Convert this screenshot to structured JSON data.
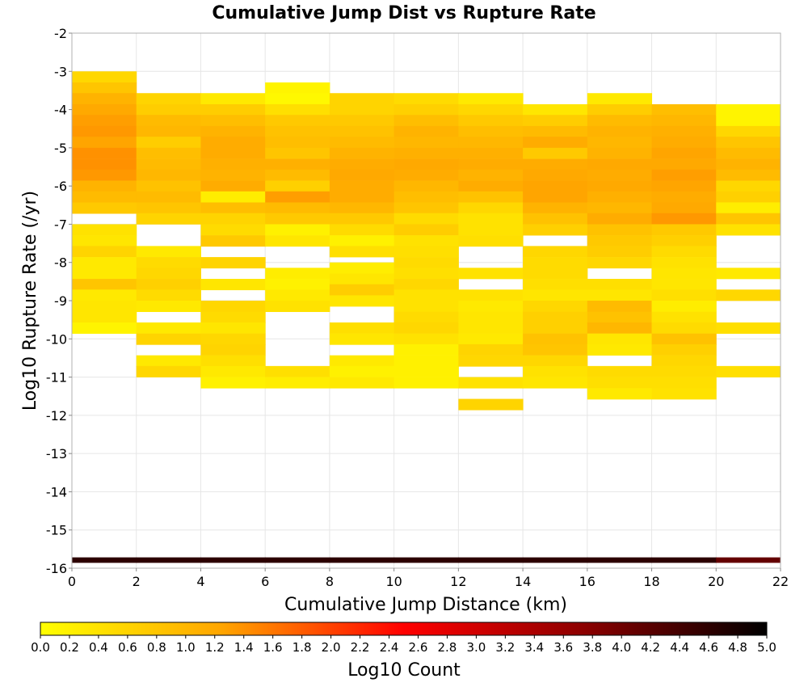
{
  "chart_data": {
    "type": "heatmap",
    "title": "Cumulative Jump Dist vs Rupture Rate",
    "xlabel": "Cumulative Jump Distance (km)",
    "ylabel": "Log10 Rupture Rate (/yr)",
    "colorbar_label": "Log10 Count",
    "xlim": [
      0,
      22
    ],
    "ylim": [
      -16,
      -2
    ],
    "x_ticks": [
      0,
      2,
      4,
      6,
      8,
      10,
      12,
      14,
      16,
      18,
      20,
      22
    ],
    "y_ticks": [
      -2,
      -3,
      -4,
      -5,
      -6,
      -7,
      -8,
      -9,
      -10,
      -11,
      -12,
      -13,
      -14,
      -15,
      -16
    ],
    "colorbar_ticks": [
      "0.0",
      "0.2",
      "0.4",
      "0.6",
      "0.8",
      "1.0",
      "1.2",
      "1.4",
      "1.6",
      "1.8",
      "2.0",
      "2.2",
      "2.4",
      "2.6",
      "2.8",
      "3.0",
      "3.2",
      "3.4",
      "3.6",
      "3.8",
      "4.0",
      "4.2",
      "4.4",
      "4.6",
      "4.8",
      "5.0"
    ],
    "colorbar_range": [
      0,
      5
    ],
    "colormap": [
      "#ffff00",
      "#ffa500",
      "#ff0000",
      "#8b0000",
      "#000000"
    ],
    "x_bin_width": 2,
    "y_bin_height": 0.2857,
    "grid": true,
    "columns": [
      {
        "x": 1,
        "cells": [
          [
            -3.0,
            0.55
          ],
          [
            -3.29,
            0.8
          ],
          [
            -3.57,
            1.05
          ],
          [
            -3.86,
            1.2
          ],
          [
            -4.14,
            1.3
          ],
          [
            -4.43,
            1.35
          ],
          [
            -4.71,
            1.25
          ],
          [
            -5.0,
            1.4
          ],
          [
            -5.29,
            1.4
          ],
          [
            -5.57,
            1.35
          ],
          [
            -5.86,
            1.05
          ],
          [
            -6.14,
            0.95
          ],
          [
            -6.43,
            0.75
          ],
          [
            -7.0,
            0.4
          ],
          [
            -7.29,
            0.35
          ],
          [
            -7.57,
            0.6
          ],
          [
            -7.86,
            0.3
          ],
          [
            -8.14,
            0.3
          ],
          [
            -8.43,
            0.8
          ],
          [
            -8.71,
            0.3
          ],
          [
            -9.0,
            0.35
          ],
          [
            -9.29,
            0.35
          ],
          [
            -9.57,
            0.15
          ]
        ]
      },
      {
        "x": 3,
        "cells": [
          [
            -3.57,
            0.6
          ],
          [
            -3.86,
            0.7
          ],
          [
            -4.14,
            0.95
          ],
          [
            -4.43,
            1.0
          ],
          [
            -4.71,
            0.7
          ],
          [
            -5.0,
            0.9
          ],
          [
            -5.29,
            0.95
          ],
          [
            -5.57,
            1.0
          ],
          [
            -5.86,
            0.85
          ],
          [
            -6.14,
            0.95
          ],
          [
            -6.43,
            0.8
          ],
          [
            -6.71,
            0.6
          ],
          [
            -7.57,
            0.3
          ],
          [
            -7.86,
            0.5
          ],
          [
            -8.14,
            0.55
          ],
          [
            -8.43,
            0.65
          ],
          [
            -8.71,
            0.5
          ],
          [
            -9.0,
            0.3
          ],
          [
            -9.57,
            0.3
          ],
          [
            -9.86,
            0.6
          ],
          [
            -10.43,
            0.3
          ],
          [
            -10.71,
            0.55
          ]
        ]
      },
      {
        "x": 5,
        "cells": [
          [
            -3.57,
            0.3
          ],
          [
            -3.86,
            0.7
          ],
          [
            -4.14,
            0.9
          ],
          [
            -4.43,
            1.05
          ],
          [
            -4.71,
            1.15
          ],
          [
            -5.0,
            1.15
          ],
          [
            -5.29,
            1.1
          ],
          [
            -5.57,
            1.05
          ],
          [
            -5.86,
            1.15
          ],
          [
            -6.14,
            0.25
          ],
          [
            -6.43,
            0.9
          ],
          [
            -6.71,
            0.6
          ],
          [
            -7.0,
            0.5
          ],
          [
            -7.29,
            0.75
          ],
          [
            -7.86,
            0.6
          ],
          [
            -8.43,
            0.35
          ],
          [
            -9.0,
            0.55
          ],
          [
            -9.29,
            0.5
          ],
          [
            -9.57,
            0.35
          ],
          [
            -9.86,
            0.55
          ],
          [
            -10.14,
            0.6
          ],
          [
            -10.43,
            0.45
          ],
          [
            -10.71,
            0.3
          ],
          [
            -11.0,
            0.2
          ]
        ]
      },
      {
        "x": 7,
        "cells": [
          [
            -3.29,
            0.15
          ],
          [
            -3.57,
            0.1
          ],
          [
            -3.86,
            0.45
          ],
          [
            -4.14,
            0.75
          ],
          [
            -4.43,
            0.85
          ],
          [
            -4.71,
            0.9
          ],
          [
            -5.0,
            0.8
          ],
          [
            -5.29,
            1.1
          ],
          [
            -5.57,
            0.95
          ],
          [
            -5.86,
            0.65
          ],
          [
            -6.14,
            1.3
          ],
          [
            -6.43,
            0.95
          ],
          [
            -6.71,
            0.75
          ],
          [
            -7.0,
            0.2
          ],
          [
            -7.29,
            0.35
          ],
          [
            -8.14,
            0.25
          ],
          [
            -8.43,
            0.2
          ],
          [
            -8.71,
            0.3
          ],
          [
            -9.0,
            0.4
          ],
          [
            -10.71,
            0.45
          ],
          [
            -11.0,
            0.25
          ]
        ]
      },
      {
        "x": 9,
        "cells": [
          [
            -3.57,
            0.6
          ],
          [
            -3.86,
            0.6
          ],
          [
            -4.14,
            0.75
          ],
          [
            -4.43,
            0.85
          ],
          [
            -4.71,
            0.95
          ],
          [
            -5.0,
            1.05
          ],
          [
            -5.29,
            1.15
          ],
          [
            -5.57,
            1.2
          ],
          [
            -5.86,
            1.15
          ],
          [
            -6.14,
            1.15
          ],
          [
            -6.43,
            1.0
          ],
          [
            -6.71,
            0.75
          ],
          [
            -7.0,
            0.5
          ],
          [
            -7.29,
            0.2
          ],
          [
            -7.57,
            0.45
          ],
          [
            -8.0,
            0.25
          ],
          [
            -8.29,
            0.35
          ],
          [
            -8.57,
            0.7
          ],
          [
            -8.86,
            0.35
          ],
          [
            -9.57,
            0.45
          ],
          [
            -9.86,
            0.35
          ],
          [
            -10.43,
            0.3
          ],
          [
            -10.71,
            0.2
          ],
          [
            -11.0,
            0.3
          ]
        ]
      },
      {
        "x": 11,
        "cells": [
          [
            -3.57,
            0.5
          ],
          [
            -3.86,
            0.65
          ],
          [
            -4.14,
            0.9
          ],
          [
            -4.43,
            1.05
          ],
          [
            -4.71,
            1.0
          ],
          [
            -5.0,
            1.1
          ],
          [
            -5.29,
            1.2
          ],
          [
            -5.57,
            1.15
          ],
          [
            -5.86,
            1.0
          ],
          [
            -6.14,
            0.9
          ],
          [
            -6.43,
            0.8
          ],
          [
            -6.71,
            0.5
          ],
          [
            -7.0,
            0.7
          ],
          [
            -7.29,
            0.4
          ],
          [
            -7.57,
            0.45
          ],
          [
            -7.86,
            0.5
          ],
          [
            -8.14,
            0.45
          ],
          [
            -8.43,
            0.55
          ],
          [
            -8.71,
            0.4
          ],
          [
            -9.0,
            0.4
          ],
          [
            -9.29,
            0.5
          ],
          [
            -9.57,
            0.55
          ],
          [
            -9.86,
            0.4
          ],
          [
            -10.14,
            0.2
          ],
          [
            -10.43,
            0.2
          ],
          [
            -10.71,
            0.2
          ],
          [
            -11.0,
            0.2
          ]
        ]
      },
      {
        "x": 13,
        "cells": [
          [
            -3.57,
            0.3
          ],
          [
            -3.86,
            0.55
          ],
          [
            -4.14,
            0.75
          ],
          [
            -4.43,
            0.9
          ],
          [
            -4.71,
            1.0
          ],
          [
            -5.0,
            1.1
          ],
          [
            -5.29,
            1.15
          ],
          [
            -5.57,
            1.05
          ],
          [
            -5.86,
            1.15
          ],
          [
            -6.14,
            0.85
          ],
          [
            -6.43,
            0.55
          ],
          [
            -6.71,
            0.4
          ],
          [
            -7.0,
            0.4
          ],
          [
            -7.29,
            0.45
          ],
          [
            -8.14,
            0.4
          ],
          [
            -8.71,
            0.4
          ],
          [
            -9.0,
            0.3
          ],
          [
            -9.29,
            0.35
          ],
          [
            -9.57,
            0.35
          ],
          [
            -9.86,
            0.3
          ],
          [
            -10.14,
            0.6
          ],
          [
            -10.43,
            0.55
          ],
          [
            -11.0,
            0.4
          ],
          [
            -11.57,
            0.6
          ]
        ]
      },
      {
        "x": 15,
        "cells": [
          [
            -3.86,
            0.35
          ],
          [
            -4.14,
            0.7
          ],
          [
            -4.43,
            0.95
          ],
          [
            -4.71,
            1.15
          ],
          [
            -5.0,
            0.75
          ],
          [
            -5.29,
            1.15
          ],
          [
            -5.57,
            1.2
          ],
          [
            -5.86,
            1.25
          ],
          [
            -6.14,
            1.25
          ],
          [
            -6.43,
            1.05
          ],
          [
            -6.71,
            0.85
          ],
          [
            -7.0,
            0.65
          ],
          [
            -7.57,
            0.55
          ],
          [
            -7.86,
            0.5
          ],
          [
            -8.14,
            0.5
          ],
          [
            -8.43,
            0.45
          ],
          [
            -8.71,
            0.35
          ],
          [
            -9.0,
            0.55
          ],
          [
            -9.29,
            0.65
          ],
          [
            -9.57,
            0.65
          ],
          [
            -9.86,
            0.85
          ],
          [
            -10.14,
            0.8
          ],
          [
            -10.43,
            0.55
          ],
          [
            -10.71,
            0.4
          ],
          [
            -11.0,
            0.35
          ]
        ]
      },
      {
        "x": 17,
        "cells": [
          [
            -3.57,
            0.3
          ],
          [
            -3.86,
            0.7
          ],
          [
            -4.14,
            0.95
          ],
          [
            -4.43,
            1.05
          ],
          [
            -4.71,
            1.0
          ],
          [
            -5.0,
            1.05
          ],
          [
            -5.29,
            1.2
          ],
          [
            -5.57,
            1.15
          ],
          [
            -5.86,
            1.2
          ],
          [
            -6.14,
            1.1
          ],
          [
            -6.43,
            1.0
          ],
          [
            -6.71,
            1.15
          ],
          [
            -7.0,
            0.85
          ],
          [
            -7.29,
            0.75
          ],
          [
            -7.57,
            0.7
          ],
          [
            -7.86,
            0.55
          ],
          [
            -8.43,
            0.45
          ],
          [
            -8.71,
            0.35
          ],
          [
            -9.0,
            0.95
          ],
          [
            -9.29,
            0.85
          ],
          [
            -9.57,
            1.0
          ],
          [
            -9.86,
            0.35
          ],
          [
            -10.14,
            0.3
          ],
          [
            -10.71,
            0.5
          ],
          [
            -11.0,
            0.45
          ],
          [
            -11.29,
            0.3
          ]
        ]
      },
      {
        "x": 19,
        "cells": [
          [
            -3.86,
            0.9
          ],
          [
            -4.14,
            1.0
          ],
          [
            -4.43,
            1.1
          ],
          [
            -4.71,
            1.15
          ],
          [
            -5.0,
            1.25
          ],
          [
            -5.29,
            1.2
          ],
          [
            -5.57,
            1.3
          ],
          [
            -5.86,
            1.25
          ],
          [
            -6.14,
            1.15
          ],
          [
            -6.43,
            1.2
          ],
          [
            -6.71,
            1.35
          ],
          [
            -7.0,
            0.75
          ],
          [
            -7.29,
            0.65
          ],
          [
            -7.57,
            0.5
          ],
          [
            -7.86,
            0.4
          ],
          [
            -8.14,
            0.35
          ],
          [
            -8.43,
            0.35
          ],
          [
            -8.71,
            0.45
          ],
          [
            -9.0,
            0.25
          ],
          [
            -9.29,
            0.4
          ],
          [
            -9.57,
            0.5
          ],
          [
            -9.86,
            0.85
          ],
          [
            -10.14,
            0.65
          ],
          [
            -10.43,
            0.55
          ],
          [
            -10.71,
            0.5
          ],
          [
            -11.0,
            0.45
          ],
          [
            -11.29,
            0.4
          ]
        ]
      },
      {
        "x": 21,
        "cells": [
          [
            -3.86,
            0.15
          ],
          [
            -4.14,
            0.15
          ],
          [
            -4.43,
            0.55
          ],
          [
            -4.71,
            0.8
          ],
          [
            -5.0,
            0.95
          ],
          [
            -5.29,
            1.05
          ],
          [
            -5.57,
            0.95
          ],
          [
            -5.86,
            0.55
          ],
          [
            -6.14,
            0.65
          ],
          [
            -6.43,
            0.25
          ],
          [
            -6.71,
            0.8
          ],
          [
            -7.0,
            0.4
          ],
          [
            -8.14,
            0.3
          ],
          [
            -8.71,
            0.55
          ],
          [
            -9.57,
            0.45
          ],
          [
            -10.71,
            0.45
          ]
        ]
      }
    ],
    "bottom_row": {
      "y": -15.86,
      "height": 0.143,
      "values": [
        4.6,
        4.6,
        4.6,
        4.6,
        4.6,
        4.6,
        4.6,
        4.6,
        4.6,
        4.6,
        4.1
      ]
    }
  }
}
